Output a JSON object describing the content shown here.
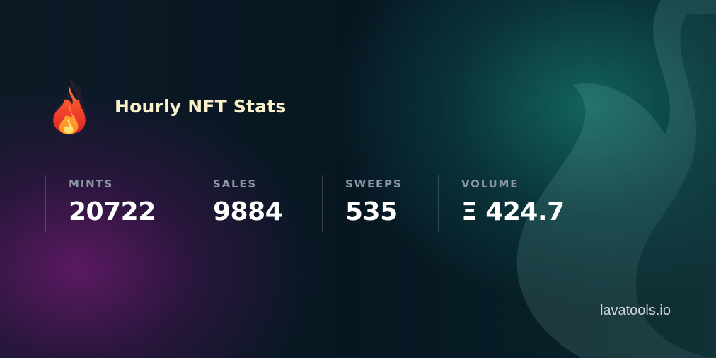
{
  "header": {
    "title": "Hourly NFT Stats",
    "icon": "fire-icon"
  },
  "stats": [
    {
      "label": "MINTS",
      "value": "20722"
    },
    {
      "label": "SALES",
      "value": "9884"
    },
    {
      "label": "SWEEPS",
      "value": "535"
    },
    {
      "label": "VOLUME",
      "value": "Ξ 424.7"
    }
  ],
  "footer": {
    "brand": "lavatools.io"
  },
  "colors": {
    "title": "#fbf1c9",
    "label": "#8b97a4",
    "value": "#ffffff",
    "glow_teal": "#146e64",
    "glow_purple": "#5f1964"
  }
}
